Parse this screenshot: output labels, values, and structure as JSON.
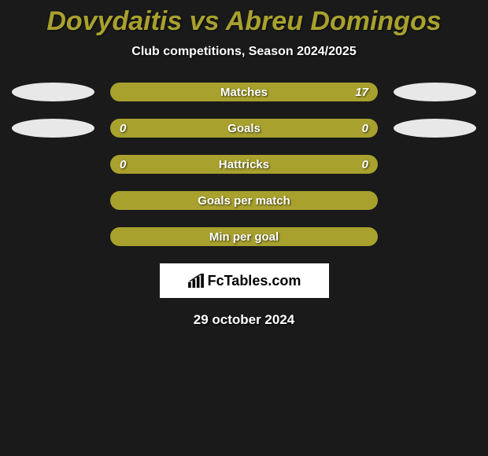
{
  "title": "Dovydaitis vs Abreu Domingos",
  "title_color": "#a8a12e",
  "subtitle": "Club competitions, Season 2024/2025",
  "bar_color": "#a8a12e",
  "ellipse_color": "#e8e8e8",
  "rows": [
    {
      "label": "Matches",
      "left": "",
      "right": "17",
      "show_left_ellipse": true,
      "show_right_ellipse": true
    },
    {
      "label": "Goals",
      "left": "0",
      "right": "0",
      "show_left_ellipse": true,
      "show_right_ellipse": true
    },
    {
      "label": "Hattricks",
      "left": "0",
      "right": "0",
      "show_left_ellipse": false,
      "show_right_ellipse": false
    },
    {
      "label": "Goals per match",
      "left": "",
      "right": "",
      "show_left_ellipse": false,
      "show_right_ellipse": false
    },
    {
      "label": "Min per goal",
      "left": "",
      "right": "",
      "show_left_ellipse": false,
      "show_right_ellipse": false
    }
  ],
  "brand": "FcTables.com",
  "date": "29 october 2024"
}
